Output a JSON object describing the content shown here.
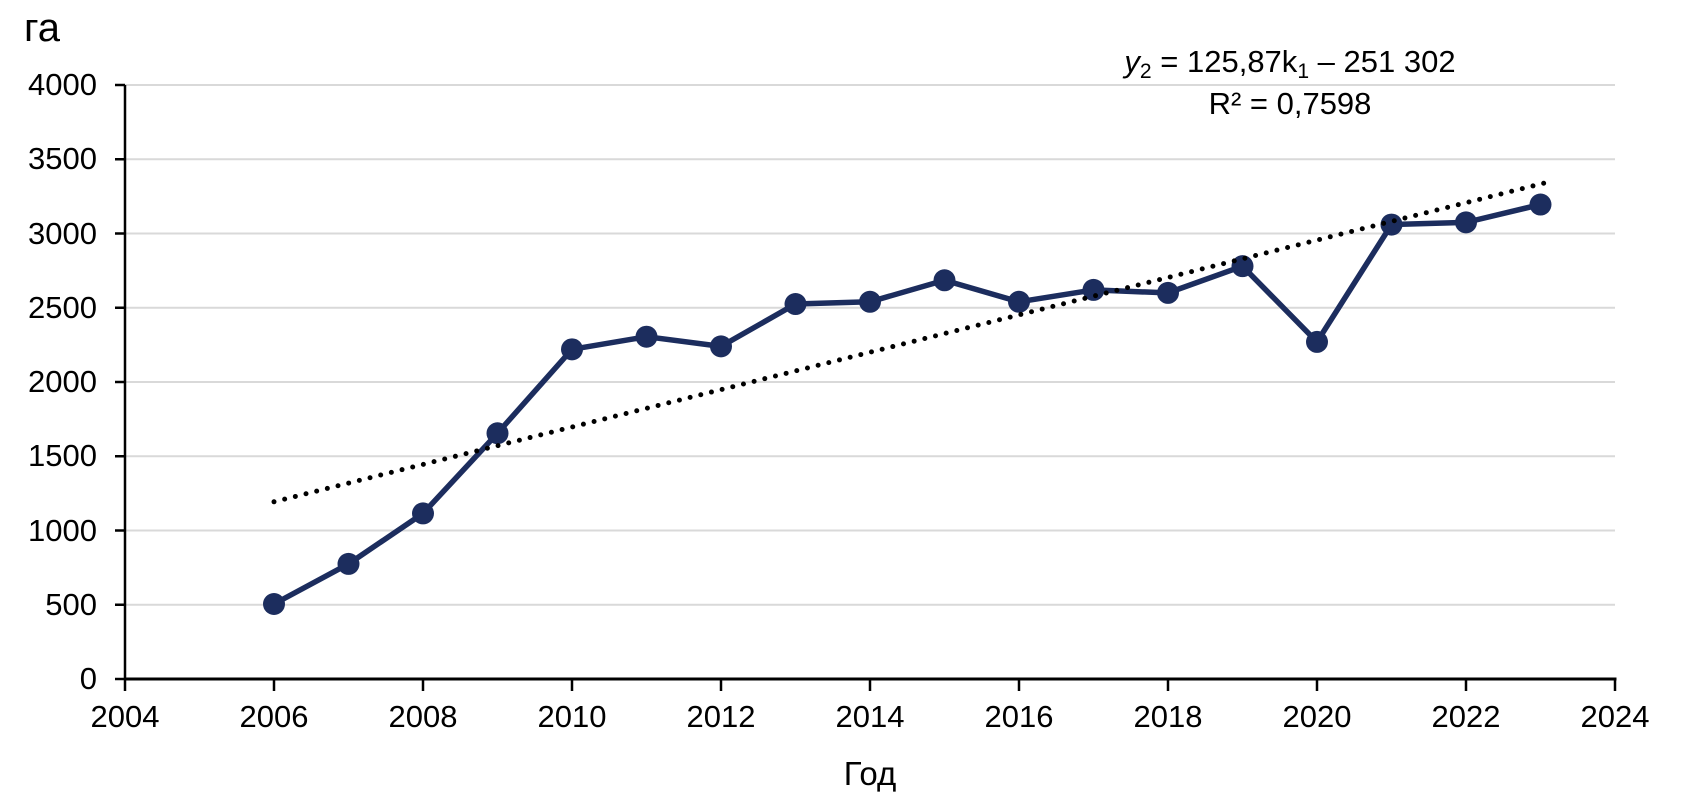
{
  "chart_data": {
    "type": "line",
    "y_axis_title": "га",
    "x_axis_title": "Год",
    "x": [
      2006,
      2007,
      2008,
      2009,
      2010,
      2011,
      2012,
      2013,
      2014,
      2015,
      2016,
      2017,
      2018,
      2019,
      2020,
      2021,
      2022,
      2023
    ],
    "values": [
      505,
      775,
      1115,
      1655,
      2220,
      2305,
      2240,
      2525,
      2540,
      2685,
      2540,
      2620,
      2600,
      2780,
      2270,
      3060,
      3075,
      3195
    ],
    "xlim": [
      2004,
      2024
    ],
    "ylim": [
      0,
      4000
    ],
    "x_ticks": [
      2004,
      2006,
      2008,
      2010,
      2012,
      2014,
      2016,
      2018,
      2020,
      2022,
      2024
    ],
    "y_ticks": [
      0,
      500,
      1000,
      1500,
      2000,
      2500,
      3000,
      3500,
      4000
    ],
    "grid": "horizontal",
    "legend": "none",
    "marker": "circle",
    "trendline": {
      "type": "linear",
      "style": "dotted",
      "slope": 125.87,
      "intercept": -251302,
      "x_start": 2006,
      "x_end": 2023.1
    },
    "equation": {
      "var_y": "y",
      "sub_y": "2",
      "mid": " = 125,87k",
      "sub_k": "1",
      "tail": " – 251 302",
      "r2": "R² = 0,7598"
    },
    "colors": {
      "series": "#1c2d5e",
      "trendline": "#000000",
      "gridline": "#d9d9d9",
      "axis": "#000000",
      "text": "#000000"
    }
  }
}
